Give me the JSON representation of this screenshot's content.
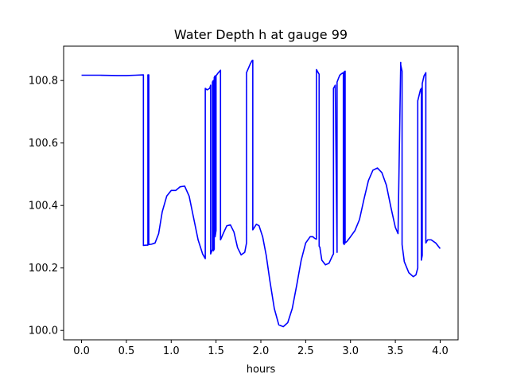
{
  "chart_data": {
    "type": "line",
    "title": "Water Depth h at gauge 99",
    "xlabel": "hours",
    "ylabel": "",
    "xlim": [
      -0.2,
      4.2
    ],
    "ylim": [
      99.97,
      100.91
    ],
    "xticks": [
      0.0,
      0.5,
      1.0,
      1.5,
      2.0,
      2.5,
      3.0,
      3.5,
      4.0
    ],
    "xtick_labels": [
      "0.0",
      "0.5",
      "1.0",
      "1.5",
      "2.0",
      "2.5",
      "3.0",
      "3.5",
      "4.0"
    ],
    "yticks": [
      100.0,
      100.2,
      100.4,
      100.6,
      100.8
    ],
    "ytick_labels": [
      "100.0",
      "100.2",
      "100.4",
      "100.6",
      "100.8"
    ],
    "grid": false,
    "color": "#0000ff",
    "series": [
      {
        "x": [
          0.0,
          0.2,
          0.4,
          0.5,
          0.6,
          0.69,
          0.69,
          0.72,
          0.74,
          0.74,
          0.75,
          0.75,
          0.78,
          0.82,
          0.86,
          0.9,
          0.95,
          1.0,
          1.05,
          1.1,
          1.15,
          1.2,
          1.25,
          1.3,
          1.35,
          1.38,
          1.38,
          1.4,
          1.43,
          1.44,
          1.44,
          1.46,
          1.46,
          1.47,
          1.47,
          1.48,
          1.48,
          1.49,
          1.49,
          1.5,
          1.5,
          1.52,
          1.55,
          1.55,
          1.58,
          1.62,
          1.66,
          1.7,
          1.74,
          1.78,
          1.82,
          1.84,
          1.84,
          1.88,
          1.9,
          1.91,
          1.91,
          1.95,
          1.98,
          2.02,
          2.06,
          2.1,
          2.15,
          2.2,
          2.25,
          2.3,
          2.35,
          2.4,
          2.45,
          2.5,
          2.55,
          2.58,
          2.6,
          2.62,
          2.62,
          2.65,
          2.65,
          2.66,
          2.66,
          2.68,
          2.72,
          2.76,
          2.8,
          2.81,
          2.81,
          2.83,
          2.85,
          2.85,
          2.87,
          2.88,
          2.9,
          2.92,
          2.92,
          2.93,
          2.93,
          2.94,
          2.94,
          2.96,
          3.0,
          3.05,
          3.1,
          3.15,
          3.2,
          3.25,
          3.3,
          3.35,
          3.4,
          3.45,
          3.5,
          3.53,
          3.56,
          3.56,
          3.575,
          3.575,
          3.6,
          3.65,
          3.7,
          3.73,
          3.75,
          3.75,
          3.78,
          3.79,
          3.79,
          3.8,
          3.8,
          3.82,
          3.84,
          3.84,
          3.86,
          3.9,
          3.95,
          4.0
        ],
        "y": [
          100.817,
          100.817,
          100.816,
          100.816,
          100.817,
          100.818,
          100.272,
          100.273,
          100.273,
          100.818,
          100.818,
          100.275,
          100.276,
          100.28,
          100.31,
          100.38,
          100.43,
          100.448,
          100.448,
          100.46,
          100.462,
          100.43,
          100.36,
          100.29,
          100.245,
          100.23,
          100.775,
          100.77,
          100.775,
          100.785,
          100.245,
          100.26,
          100.795,
          100.8,
          100.255,
          100.26,
          100.81,
          100.815,
          100.3,
          100.32,
          100.815,
          100.823,
          100.833,
          100.29,
          100.31,
          100.335,
          100.338,
          100.315,
          100.265,
          100.242,
          100.25,
          100.28,
          100.825,
          100.852,
          100.863,
          100.865,
          100.322,
          100.34,
          100.335,
          100.3,
          100.24,
          100.16,
          100.07,
          100.018,
          100.012,
          100.025,
          100.07,
          100.145,
          100.225,
          100.28,
          100.3,
          100.3,
          100.295,
          100.292,
          100.835,
          100.82,
          100.27,
          100.265,
          100.262,
          100.225,
          100.21,
          100.215,
          100.24,
          100.245,
          100.775,
          100.785,
          100.25,
          100.795,
          100.81,
          100.817,
          100.822,
          100.825,
          100.28,
          100.275,
          100.828,
          100.83,
          100.28,
          100.285,
          100.3,
          100.32,
          100.355,
          100.42,
          100.48,
          100.513,
          100.52,
          100.505,
          100.465,
          100.395,
          100.33,
          100.31,
          100.858,
          100.85,
          100.83,
          100.275,
          100.22,
          100.185,
          100.172,
          100.178,
          100.2,
          100.735,
          100.77,
          100.775,
          100.225,
          100.24,
          100.79,
          100.815,
          100.825,
          100.28,
          100.29,
          100.29,
          100.28,
          100.262
        ]
      }
    ]
  }
}
